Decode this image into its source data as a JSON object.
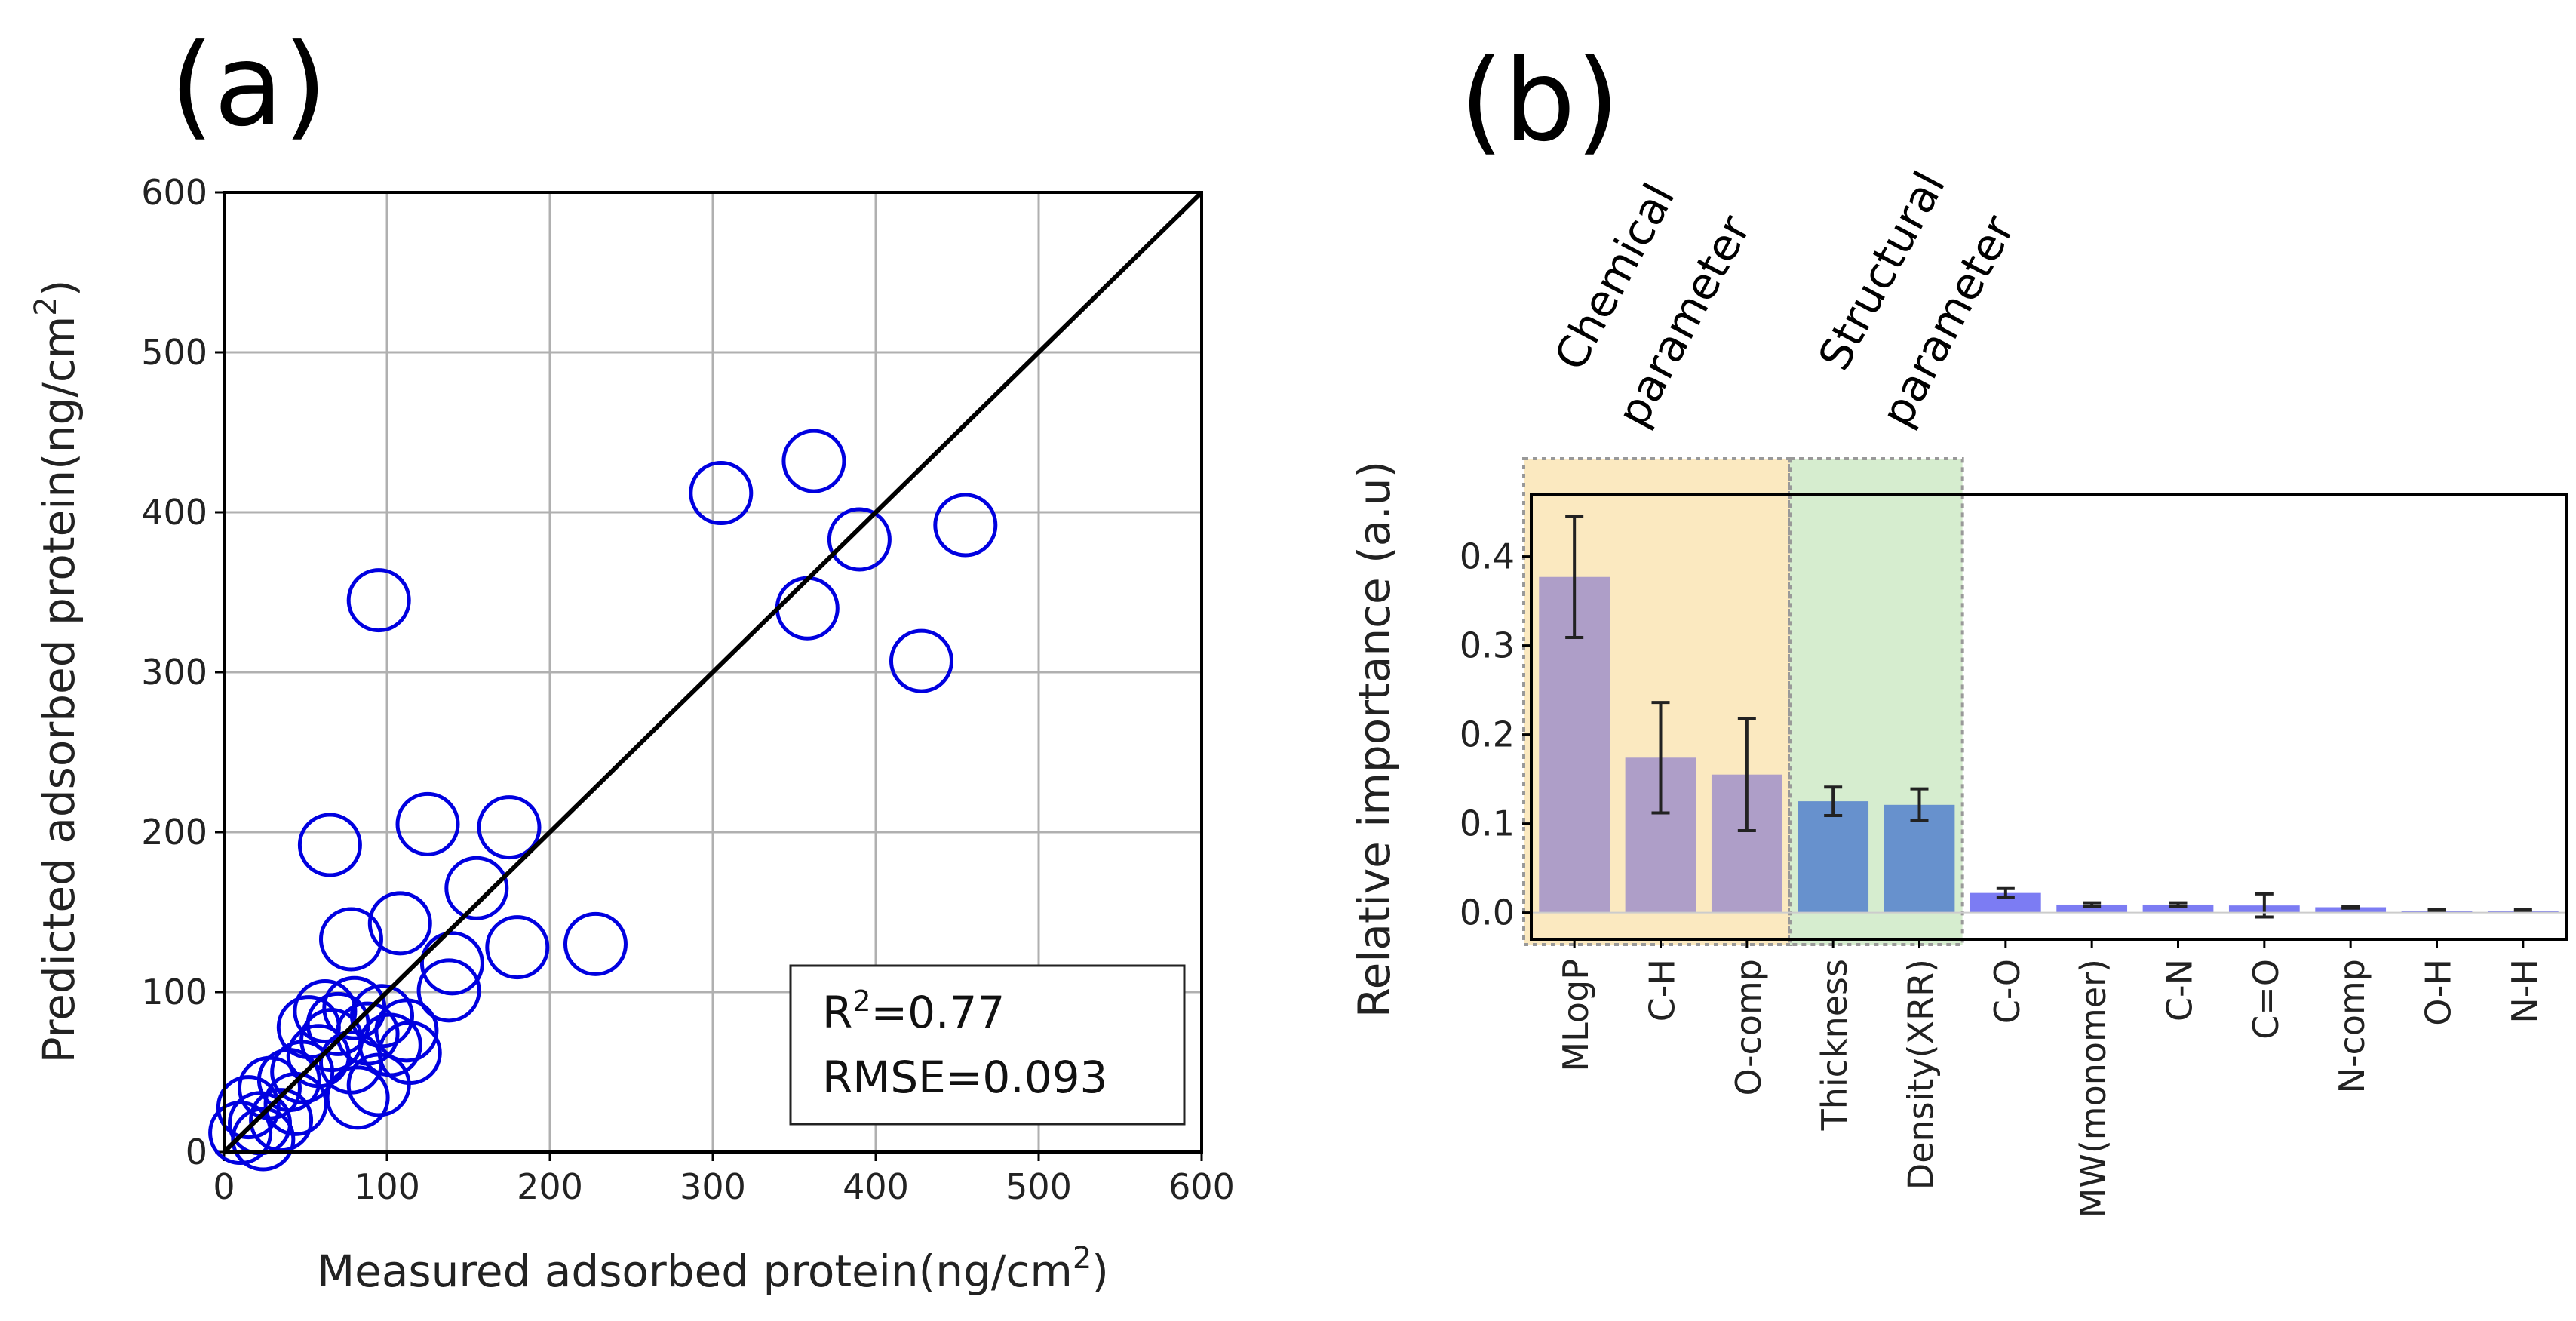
{
  "panels": {
    "a": {
      "label": "(a)",
      "chart_data": {
        "type": "scatter",
        "xlabel": "Measured adsorbed protein(ng/cm",
        "xlabel_sup": "2",
        "xlabel_end": ")",
        "ylabel": "Predicted adsorbed protein(ng/cm",
        "ylabel_sup": "2",
        "ylabel_end": ")",
        "xlim": [
          0,
          600
        ],
        "ylim": [
          0,
          600
        ],
        "xticks": [
          "0",
          "100",
          "200",
          "300",
          "400",
          "500",
          "600"
        ],
        "yticks": [
          "0",
          "100",
          "200",
          "300",
          "400",
          "500",
          "600"
        ],
        "grid": true,
        "marker_color": "#0000e0",
        "identity_line": [
          [
            0,
            0
          ],
          [
            600,
            600
          ]
        ],
        "points": [
          [
            95,
            345
          ],
          [
            305,
            412
          ],
          [
            362,
            432
          ],
          [
            390,
            383
          ],
          [
            455,
            392
          ],
          [
            358,
            340
          ],
          [
            428,
            307
          ],
          [
            65,
            192
          ],
          [
            125,
            205
          ],
          [
            175,
            203
          ],
          [
            155,
            165
          ],
          [
            108,
            143
          ],
          [
            78,
            133
          ],
          [
            180,
            128
          ],
          [
            228,
            130
          ],
          [
            140,
            118
          ],
          [
            138,
            101
          ],
          [
            62,
            88
          ],
          [
            80,
            90
          ],
          [
            97,
            85
          ],
          [
            52,
            78
          ],
          [
            66,
            70
          ],
          [
            88,
            74
          ],
          [
            112,
            76
          ],
          [
            114,
            62
          ],
          [
            78,
            56
          ],
          [
            95,
            42
          ],
          [
            82,
            34
          ],
          [
            48,
            50
          ],
          [
            40,
            45
          ],
          [
            28,
            40
          ],
          [
            15,
            28
          ],
          [
            22,
            18
          ],
          [
            35,
            20
          ],
          [
            10,
            12
          ],
          [
            24,
            8
          ],
          [
            44,
            30
          ],
          [
            58,
            60
          ],
          [
            70,
            80
          ],
          [
            102,
            67
          ]
        ],
        "stats": {
          "r2_prefix": "R",
          "r2_sup": "2",
          "r2_value": "=0.77",
          "rmse": "RMSE=0.093"
        }
      }
    },
    "b": {
      "label": "(b)",
      "chart_data": {
        "type": "bar",
        "ylabel": "Relative importance (a.u)",
        "ylim": [
          -0.03,
          0.47
        ],
        "yticks": [
          "0.0",
          "0.1",
          "0.2",
          "0.3",
          "0.4"
        ],
        "categories": [
          "MLogP",
          "C-H",
          "O-comp",
          "Thickness",
          "Density(XRR)",
          "C-O",
          "MW(monomer)",
          "C-N",
          "C=O",
          "N-comp",
          "O-H",
          "N-H"
        ],
        "values": [
          0.377,
          0.174,
          0.155,
          0.125,
          0.121,
          0.022,
          0.009,
          0.009,
          0.008,
          0.006,
          0.002,
          0.002
        ],
        "errors": [
          0.068,
          0.062,
          0.063,
          0.016,
          0.018,
          0.005,
          0.002,
          0.002,
          0.013,
          0.001,
          0.001,
          0.001
        ],
        "bar_colors": [
          "#a596c9",
          "#a596c9",
          "#a596c9",
          "#5b86cc",
          "#5b86cc",
          "#6e6ef2",
          "#6e6ef2",
          "#6e6ef2",
          "#6e6ef2",
          "#6e6ef2",
          "#6e6ef2",
          "#6e6ef2"
        ],
        "groups": [
          {
            "name": "Chemical parameter",
            "line1": "Chemical",
            "line2": "parameter",
            "color": "#fbe9c0",
            "range": [
              0,
              2
            ]
          },
          {
            "name": "Structural parameter",
            "line1": "Structural",
            "line2": "parameter",
            "color": "#d6edcf",
            "range": [
              3,
              4
            ]
          }
        ]
      }
    }
  }
}
